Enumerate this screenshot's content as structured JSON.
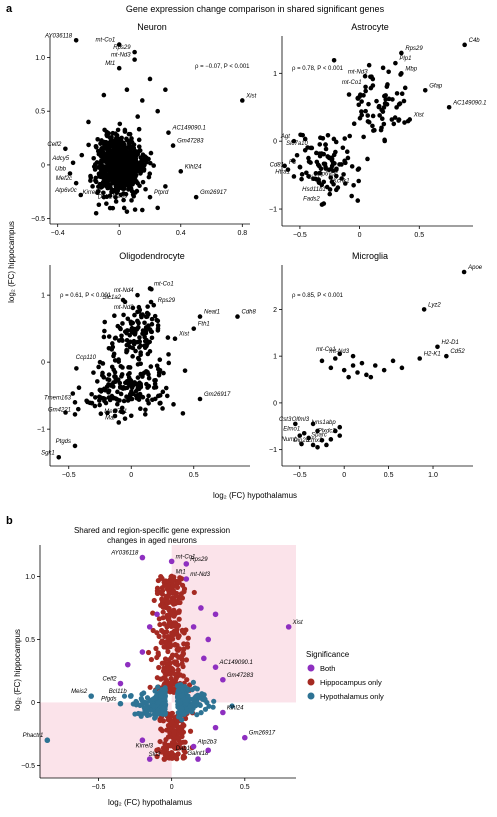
{
  "panel_a": {
    "letter": "a",
    "title": "Gene expression change comparison in shared significant genes",
    "xlabel": "log₂ (FC) hypothalamus",
    "ylabel": "log₂ (FC) hippocampus"
  },
  "panel_b": {
    "letter": "b",
    "title": "Shared and region-specific gene expression",
    "subtitle": "changes in aged neurons",
    "xlabel": "log₂ (FC) hypothalamus",
    "ylabel": "log₂ (FC) hippocampus",
    "legend": {
      "title": "Significance",
      "items": [
        {
          "label": "Both",
          "color": "#8e2fc0"
        },
        {
          "label": "Hippocampus only",
          "color": "#a52a22"
        },
        {
          "label": "Hypothalamus only",
          "color": "#2e7394"
        }
      ]
    }
  },
  "chart_data": [
    {
      "type": "scatter",
      "title": "Neuron",
      "stat": "ρ = −0.07, P < 0.001",
      "xlim": [
        -0.45,
        0.85
      ],
      "ylim": [
        -0.55,
        1.2
      ],
      "xticks": [
        -0.4,
        0,
        0.4,
        0.8
      ],
      "yticks": [
        -0.5,
        0,
        0.5,
        1.0
      ],
      "xtick_labels": [
        "−0.4",
        "0",
        "0.4",
        "0.8"
      ],
      "ytick_labels": [
        "−0.5",
        "0",
        "0.5",
        "1.0"
      ],
      "cloud": {
        "cx": 0.0,
        "cy": 0.0,
        "sx": 0.07,
        "sy": 0.13,
        "n": 900
      },
      "points": [
        {
          "x": -0.28,
          "y": 1.16,
          "label": "AY036118"
        },
        {
          "x": 0.0,
          "y": 1.12,
          "label": "mt-Co1"
        },
        {
          "x": 0.1,
          "y": 1.05,
          "label": "Rps29"
        },
        {
          "x": 0.1,
          "y": 0.98,
          "label": "mt-Nd3"
        },
        {
          "x": 0.0,
          "y": 0.9,
          "label": "Mt1"
        },
        {
          "x": 0.8,
          "y": 0.6,
          "label": "Xist"
        },
        {
          "x": 0.32,
          "y": 0.3,
          "label": "AC149090.1"
        },
        {
          "x": 0.35,
          "y": 0.18,
          "label": "Gm47283"
        },
        {
          "x": -0.35,
          "y": 0.15,
          "label": "Celf2"
        },
        {
          "x": -0.3,
          "y": 0.02,
          "label": "Adcy5"
        },
        {
          "x": -0.32,
          "y": -0.08,
          "label": "Ubb"
        },
        {
          "x": -0.28,
          "y": -0.17,
          "label": "Mef2c"
        },
        {
          "x": 0.4,
          "y": -0.06,
          "label": "Klhl24"
        },
        {
          "x": -0.25,
          "y": -0.28,
          "label": "Atp6v0c"
        },
        {
          "x": -0.1,
          "y": -0.3,
          "label": "Kirrel3"
        },
        {
          "x": -0.02,
          "y": -0.34,
          "label": "Dab1"
        },
        {
          "x": 0.08,
          "y": -0.33,
          "label": "Atp2b3"
        },
        {
          "x": 0.2,
          "y": -0.3,
          "label": "Ptprd"
        },
        {
          "x": 0.5,
          "y": -0.3,
          "label": "Gm26917"
        },
        {
          "x": 0.05,
          "y": 0.7
        },
        {
          "x": 0.2,
          "y": 0.8
        },
        {
          "x": 0.15,
          "y": 0.6
        },
        {
          "x": -0.1,
          "y": 0.65
        },
        {
          "x": 0.25,
          "y": 0.5
        },
        {
          "x": 0.3,
          "y": 0.7
        },
        {
          "x": 0.12,
          "y": 0.45
        },
        {
          "x": -0.2,
          "y": 0.4
        },
        {
          "x": 0.3,
          "y": -0.2
        },
        {
          "x": 0.25,
          "y": -0.4
        },
        {
          "x": -0.15,
          "y": -0.45
        },
        {
          "x": 0.15,
          "y": -0.42
        }
      ]
    },
    {
      "type": "scatter",
      "title": "Astrocyte",
      "stat": "ρ = 0.78, P < 0.001",
      "xlim": [
        -0.65,
        0.95
      ],
      "ylim": [
        -1.25,
        1.55
      ],
      "xticks": [
        -0.5,
        0,
        0.5
      ],
      "yticks": [
        -1,
        0,
        1
      ],
      "xtick_labels": [
        "−0.5",
        "0",
        "0.5"
      ],
      "ytick_labels": [
        "−1",
        "0",
        "1"
      ],
      "cluster": [
        {
          "cx": 0.15,
          "cy": 0.55,
          "sx": 0.13,
          "sy": 0.28,
          "n": 70
        },
        {
          "cx": -0.25,
          "cy": -0.35,
          "sx": 0.14,
          "sy": 0.22,
          "n": 90
        }
      ],
      "points": [
        {
          "x": 0.88,
          "y": 1.42,
          "label": "C4b"
        },
        {
          "x": 0.35,
          "y": 1.3,
          "label": "Rps29"
        },
        {
          "x": 0.3,
          "y": 1.15,
          "label": "Plp1"
        },
        {
          "x": 0.35,
          "y": 1.0,
          "label": "Mbp"
        },
        {
          "x": 0.1,
          "y": 0.95,
          "label": "mt-Nd3"
        },
        {
          "x": 0.05,
          "y": 0.8,
          "label": "mt-Co1"
        },
        {
          "x": 0.55,
          "y": 0.75,
          "label": "Gfap"
        },
        {
          "x": 0.75,
          "y": 0.5,
          "label": "AC149090.1"
        },
        {
          "x": 0.42,
          "y": 0.32,
          "label": "Xist"
        },
        {
          "x": -0.55,
          "y": 0.0,
          "label": "Agt"
        },
        {
          "x": -0.4,
          "y": -0.1,
          "label": "Slc7a10"
        },
        {
          "x": -0.5,
          "y": -0.38,
          "label": "F3"
        },
        {
          "x": -0.6,
          "y": -0.42,
          "label": "Cd81"
        },
        {
          "x": -0.55,
          "y": -0.52,
          "label": "Htra1"
        },
        {
          "x": -0.3,
          "y": -0.6,
          "label": "Gja1"
        },
        {
          "x": -0.15,
          "y": -0.55,
          "label": "Atp6v0c"
        },
        {
          "x": -0.05,
          "y": -0.65,
          "label": "Kcnk1"
        },
        {
          "x": -0.25,
          "y": -0.78,
          "label": "Hsd11b1"
        },
        {
          "x": -0.3,
          "y": -0.92,
          "label": "Fads2"
        }
      ]
    },
    {
      "type": "scatter",
      "title": "Oligodendrocyte",
      "stat": "ρ = 0.61, P < 0.001",
      "xlim": [
        -0.65,
        0.95
      ],
      "ylim": [
        -1.55,
        1.45
      ],
      "xticks": [
        -0.5,
        0,
        0.5
      ],
      "yticks": [
        -1,
        0,
        1
      ],
      "xtick_labels": [
        "−0.5",
        "0",
        "0.5"
      ],
      "ytick_labels": [
        "−1",
        "0",
        "1"
      ],
      "cluster": [
        {
          "cx": 0.05,
          "cy": 0.4,
          "sx": 0.12,
          "sy": 0.22,
          "n": 120
        },
        {
          "cx": -0.05,
          "cy": -0.35,
          "sx": 0.18,
          "sy": 0.2,
          "n": 180
        }
      ],
      "points": [
        {
          "x": 0.15,
          "y": 1.1,
          "label": "mt-Co1"
        },
        {
          "x": 0.05,
          "y": 1.0,
          "label": "mt-Nd4"
        },
        {
          "x": -0.05,
          "y": 0.9,
          "label": "Slc1a2"
        },
        {
          "x": 0.18,
          "y": 0.85,
          "label": "Rps29"
        },
        {
          "x": 0.05,
          "y": 0.75,
          "label": "mt-Nd3"
        },
        {
          "x": 0.55,
          "y": 0.68,
          "label": "Neat1"
        },
        {
          "x": 0.85,
          "y": 0.68,
          "label": "Cdh8"
        },
        {
          "x": 0.5,
          "y": 0.5,
          "label": "Fth1"
        },
        {
          "x": 0.35,
          "y": 0.35,
          "label": "Xist"
        },
        {
          "x": -0.25,
          "y": 0.0,
          "label": "Ccp110"
        },
        {
          "x": -0.45,
          "y": -0.6,
          "label": "Tmem163"
        },
        {
          "x": -0.45,
          "y": -0.78,
          "label": "Gm4221"
        },
        {
          "x": -0.1,
          "y": -0.9,
          "label": "Mal"
        },
        {
          "x": 0.0,
          "y": -0.8,
          "label": "Mettl7a1"
        },
        {
          "x": 0.55,
          "y": -0.55,
          "label": "Gm26917"
        },
        {
          "x": -0.45,
          "y": -1.25,
          "label": "Ptgds"
        },
        {
          "x": -0.58,
          "y": -1.42,
          "label": "Sgk1"
        }
      ]
    },
    {
      "type": "scatter",
      "title": "Microglia",
      "stat": "ρ = 0.85, P < 0.001",
      "xlim": [
        -0.7,
        1.45
      ],
      "ylim": [
        -1.35,
        2.95
      ],
      "xticks": [
        -0.5,
        0,
        0.5,
        1.0
      ],
      "yticks": [
        -1,
        0,
        1,
        2
      ],
      "xtick_labels": [
        "−0.5",
        "0",
        "0.5",
        "1.0"
      ],
      "ytick_labels": [
        "−1",
        "0",
        "1",
        "2"
      ],
      "points": [
        {
          "x": 1.35,
          "y": 2.8,
          "label": "Apoe"
        },
        {
          "x": 0.9,
          "y": 2.0,
          "label": "Lyz2"
        },
        {
          "x": 1.05,
          "y": 1.2,
          "label": "H2-D1"
        },
        {
          "x": 0.85,
          "y": 0.95,
          "label": "H2-K1"
        },
        {
          "x": 1.15,
          "y": 1.0,
          "label": "Cd52"
        },
        {
          "x": -0.05,
          "y": 1.05,
          "label": "mt-Co1"
        },
        {
          "x": 0.1,
          "y": 1.0,
          "label": "mt-Nd3"
        },
        {
          "x": -0.55,
          "y": -0.45,
          "label": "Cst3"
        },
        {
          "x": -0.35,
          "y": -0.45,
          "label": "Olfml3"
        },
        {
          "x": -0.05,
          "y": -0.52,
          "label": "Ivns1abp"
        },
        {
          "x": -0.45,
          "y": -0.65,
          "label": "Elmo1"
        },
        {
          "x": -0.05,
          "y": -0.7,
          "label": "Plxdc2"
        },
        {
          "x": -0.15,
          "y": -0.78,
          "label": "Sparc"
        },
        {
          "x": -0.48,
          "y": -0.88,
          "label": "Numb"
        },
        {
          "x": -0.35,
          "y": -0.9,
          "label": "Dip2b"
        },
        {
          "x": -0.2,
          "y": -0.9,
          "label": "Zfhx3"
        },
        {
          "x": -0.25,
          "y": 0.9
        },
        {
          "x": -0.15,
          "y": 0.75
        },
        {
          "x": 0.0,
          "y": 0.7
        },
        {
          "x": 0.05,
          "y": 0.55
        },
        {
          "x": 0.15,
          "y": 0.65
        },
        {
          "x": 0.25,
          "y": 0.6
        },
        {
          "x": 0.35,
          "y": 0.8
        },
        {
          "x": 0.45,
          "y": 0.7
        },
        {
          "x": 0.55,
          "y": 0.9
        },
        {
          "x": 0.65,
          "y": 0.75
        },
        {
          "x": 0.2,
          "y": 0.85
        },
        {
          "x": 0.3,
          "y": 0.55
        },
        {
          "x": -0.1,
          "y": 0.95
        },
        {
          "x": 0.1,
          "y": 0.8
        },
        {
          "x": -0.3,
          "y": -0.6
        },
        {
          "x": -0.4,
          "y": -0.75
        },
        {
          "x": -0.25,
          "y": -0.8
        },
        {
          "x": -0.1,
          "y": -0.6
        },
        {
          "x": -0.5,
          "y": -0.7
        },
        {
          "x": -0.3,
          "y": -0.95
        }
      ]
    },
    {
      "type": "scatter",
      "title": "Shared and region-specific gene expression changes in aged neurons",
      "xlim": [
        -0.9,
        0.85
      ],
      "ylim": [
        -0.6,
        1.25
      ],
      "xticks": [
        -0.5,
        0,
        0.5
      ],
      "yticks": [
        -0.5,
        0,
        0.5,
        1.0
      ],
      "xtick_labels": [
        "−0.5",
        "0",
        "0.5"
      ],
      "ytick_labels": [
        "−0.5",
        "0",
        "0.5",
        "1.0"
      ],
      "shaded_regions": [
        {
          "x": [
            0,
            0.85
          ],
          "y": [
            0,
            1.25
          ]
        },
        {
          "x": [
            -0.9,
            0
          ],
          "y": [
            -0.6,
            0
          ]
        }
      ],
      "groups": {
        "hypothalamus_only": {
          "x_range": [
            -0.35,
            0.35
          ],
          "y_range": [
            -0.12,
            0.12
          ],
          "n": 340
        },
        "hippocampus_only": {
          "x_range": [
            -0.08,
            0.08
          ],
          "y_range": [
            -0.45,
            1.0
          ],
          "n": 420
        }
      },
      "points": [
        {
          "x": -0.2,
          "y": 1.15,
          "label": "AY036118",
          "group": "Both"
        },
        {
          "x": 0.0,
          "y": 1.12,
          "label": "mt-Co1",
          "group": "Both"
        },
        {
          "x": 0.1,
          "y": 1.1,
          "label": "Rps29",
          "group": "Both"
        },
        {
          "x": 0.0,
          "y": 1.0,
          "label": "Mt1",
          "group": "Hippocampus only"
        },
        {
          "x": 0.1,
          "y": 0.98,
          "label": "mt-Nd3",
          "group": "Both"
        },
        {
          "x": 0.8,
          "y": 0.6,
          "label": "Xist",
          "group": "Both"
        },
        {
          "x": 0.3,
          "y": 0.28,
          "label": "AC149090.1",
          "group": "Both"
        },
        {
          "x": 0.35,
          "y": 0.18,
          "label": "Gm47283",
          "group": "Both"
        },
        {
          "x": -0.35,
          "y": 0.15,
          "label": "Celf2",
          "group": "Both"
        },
        {
          "x": -0.28,
          "y": 0.05,
          "label": "Bcl11b",
          "group": "Hypothalamus only"
        },
        {
          "x": -0.55,
          "y": 0.05,
          "label": "Meis2",
          "group": "Hypothalamus only"
        },
        {
          "x": -0.35,
          "y": -0.01,
          "label": "Pfgds",
          "group": "Hypothalamus only"
        },
        {
          "x": 0.35,
          "y": -0.08,
          "label": "Klhl24",
          "group": "Both"
        },
        {
          "x": -0.85,
          "y": -0.3,
          "label": "Phactr1",
          "group": "Hypothalamus only"
        },
        {
          "x": 0.5,
          "y": -0.28,
          "label": "Gm26917",
          "group": "Both"
        },
        {
          "x": -0.1,
          "y": -0.38,
          "label": "Kirrel3",
          "group": "Hippocampus only"
        },
        {
          "x": 0.0,
          "y": -0.4,
          "label": "Dab1",
          "group": "Hippocampus only"
        },
        {
          "x": 0.15,
          "y": -0.35,
          "label": "Atp2b3",
          "group": "Both"
        },
        {
          "x": -0.05,
          "y": -0.45,
          "label": "Slit3",
          "group": "Hippocampus only"
        },
        {
          "x": 0.08,
          "y": -0.44,
          "label": "Galnt18",
          "group": "Hippocampus only"
        },
        {
          "x": 0.2,
          "y": 0.75,
          "group": "Both"
        },
        {
          "x": 0.3,
          "y": 0.7,
          "group": "Both"
        },
        {
          "x": 0.15,
          "y": 0.6,
          "group": "Both"
        },
        {
          "x": 0.25,
          "y": 0.5,
          "group": "Both"
        },
        {
          "x": -0.2,
          "y": 0.4,
          "group": "Both"
        },
        {
          "x": -0.15,
          "y": 0.6,
          "group": "Both"
        },
        {
          "x": -0.1,
          "y": 0.7,
          "group": "Both"
        },
        {
          "x": 0.3,
          "y": -0.2,
          "group": "Both"
        },
        {
          "x": 0.25,
          "y": -0.38,
          "group": "Both"
        },
        {
          "x": -0.2,
          "y": -0.3,
          "group": "Both"
        },
        {
          "x": -0.15,
          "y": -0.45,
          "group": "Both"
        },
        {
          "x": 0.18,
          "y": -0.45,
          "group": "Both"
        },
        {
          "x": -0.3,
          "y": 0.3,
          "group": "Both"
        },
        {
          "x": 0.22,
          "y": 0.35,
          "group": "Both"
        }
      ]
    }
  ]
}
